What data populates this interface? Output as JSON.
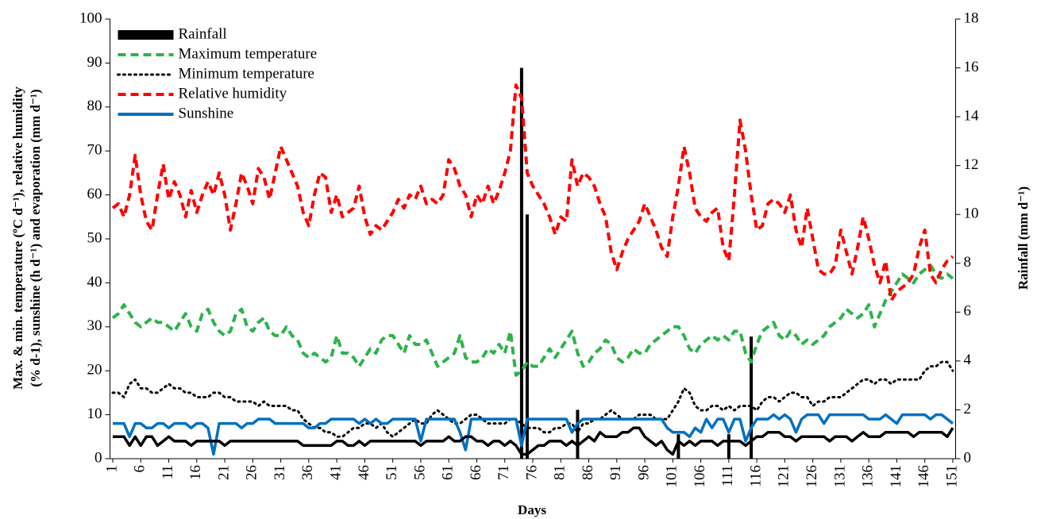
{
  "chart_data": {
    "type": "line",
    "xlabel": "Days",
    "ylabel": [
      "Max. & min. temperature (ºC d⁻¹), relative humidity",
      "(% d-1), sunshine (h d⁻¹) and evaporation (mm d⁻¹)"
    ],
    "y2label": "Rainfall (mm d⁻¹)",
    "x": [
      1,
      2,
      3,
      4,
      5,
      6,
      7,
      8,
      9,
      10,
      11,
      12,
      13,
      14,
      15,
      16,
      17,
      18,
      19,
      20,
      21,
      22,
      23,
      24,
      25,
      26,
      27,
      28,
      29,
      30,
      31,
      32,
      33,
      34,
      35,
      36,
      37,
      38,
      39,
      40,
      41,
      42,
      43,
      44,
      45,
      46,
      47,
      48,
      49,
      50,
      51,
      52,
      53,
      54,
      55,
      56,
      57,
      58,
      59,
      60,
      61,
      62,
      63,
      64,
      65,
      66,
      67,
      68,
      69,
      70,
      71,
      72,
      73,
      74,
      75,
      76,
      77,
      78,
      79,
      80,
      81,
      82,
      83,
      84,
      85,
      86,
      87,
      88,
      89,
      90,
      91,
      92,
      93,
      94,
      95,
      96,
      97,
      98,
      99,
      100,
      101,
      102,
      103,
      104,
      105,
      106,
      107,
      108,
      109,
      110,
      111,
      112,
      113,
      114,
      115,
      116,
      117,
      118,
      119,
      120,
      121,
      122,
      123,
      124,
      125,
      126,
      127,
      128,
      129,
      130,
      131,
      132,
      133,
      134,
      135,
      136,
      137,
      138,
      139,
      140,
      141,
      142,
      143,
      144,
      145,
      146,
      147,
      148,
      149,
      150,
      151
    ],
    "xlim": [
      0.5,
      151.5
    ],
    "xticks": [
      1,
      6,
      11,
      16,
      21,
      26,
      31,
      36,
      41,
      46,
      51,
      56,
      61,
      66,
      71,
      76,
      81,
      86,
      91,
      96,
      101,
      106,
      111,
      116,
      121,
      126,
      131,
      136,
      141,
      146,
      151
    ],
    "ylim": [
      0,
      100
    ],
    "yticks": [
      0,
      10,
      20,
      30,
      40,
      50,
      60,
      70,
      80,
      90,
      100
    ],
    "y2lim": [
      0,
      18
    ],
    "y2ticks": [
      0,
      2,
      4,
      6,
      8,
      10,
      12,
      14,
      16,
      18
    ],
    "legend": "upper left",
    "series": [
      {
        "name": "Rainfall",
        "style": "bar",
        "axis": "y2",
        "color": "#000000",
        "values": [
          0,
          0,
          0,
          0,
          0,
          0,
          0,
          0,
          0,
          0,
          0,
          0,
          0,
          0,
          0,
          0,
          0,
          0,
          0,
          0,
          0,
          0,
          0,
          0,
          0,
          0,
          0,
          0,
          0,
          0,
          0,
          0,
          0,
          0,
          0,
          0,
          0,
          0,
          0,
          0,
          0,
          0,
          0,
          0,
          0,
          0,
          0,
          0,
          0,
          0,
          0,
          0,
          0,
          0,
          0,
          0,
          0,
          0,
          0,
          0,
          0,
          0,
          0,
          0,
          0,
          0,
          0,
          0,
          0,
          0,
          0,
          0,
          0,
          16,
          10,
          0,
          0,
          0,
          0,
          0,
          0,
          0,
          0,
          2,
          0,
          0,
          0,
          0,
          0,
          0,
          0,
          0,
          0,
          0,
          0,
          0,
          0,
          0,
          0,
          0,
          0,
          1,
          0,
          0,
          0,
          0,
          0,
          0,
          0,
          0,
          1,
          0,
          0,
          0,
          5,
          0,
          0,
          0,
          0,
          0,
          0,
          0,
          0,
          0,
          0,
          0,
          0,
          0,
          0,
          0,
          0,
          0,
          0,
          0,
          0,
          0,
          0,
          0,
          0,
          0,
          0,
          0,
          0,
          0,
          0,
          0,
          0,
          0,
          0,
          0,
          0
        ]
      },
      {
        "name": "Maximum temperature",
        "style": "dashed",
        "color": "#2db34a",
        "values": [
          32,
          33,
          35,
          33,
          31,
          30,
          31,
          32,
          31,
          31,
          30,
          29,
          31,
          33,
          30,
          29,
          33,
          34,
          31,
          29,
          28,
          29,
          33,
          34,
          30,
          29,
          31,
          32,
          29,
          28,
          28,
          30,
          28,
          27,
          24,
          23,
          24,
          23,
          22,
          23,
          28,
          24,
          24,
          23,
          21,
          23,
          25,
          24,
          27,
          28,
          28,
          26,
          24,
          28,
          26,
          26,
          27,
          24,
          21,
          22,
          23,
          24,
          28,
          23,
          22,
          22,
          23,
          25,
          24,
          26,
          24,
          29,
          19,
          20,
          22,
          21,
          21,
          23,
          25,
          23,
          25,
          27,
          29,
          24,
          21,
          22,
          24,
          25,
          27,
          26,
          23,
          22,
          23,
          25,
          24,
          24,
          26,
          27,
          28,
          29,
          30,
          30,
          28,
          25,
          24,
          26,
          27,
          28,
          27,
          28,
          27,
          29,
          29,
          24,
          22,
          26,
          29,
          30,
          31,
          28,
          27,
          29,
          28,
          26,
          27,
          26,
          27,
          28,
          30,
          31,
          32,
          34,
          33,
          32,
          33,
          35,
          30,
          33,
          36,
          38,
          40,
          42,
          41,
          40,
          42,
          43,
          44,
          42,
          41,
          42,
          41
        ]
      },
      {
        "name": "Minimum temperature",
        "style": "dotted",
        "color": "#000000",
        "values": [
          15,
          15,
          14,
          17,
          18,
          16,
          16,
          15,
          15,
          16,
          17,
          16,
          16,
          15,
          15,
          14,
          14,
          14,
          15,
          15,
          14,
          14,
          13,
          13,
          13,
          13,
          12,
          13,
          12,
          12,
          12,
          12,
          11,
          11,
          9,
          8,
          7,
          7,
          6,
          6,
          5,
          5,
          6,
          7,
          7,
          8,
          8,
          7,
          8,
          6,
          5,
          6,
          7,
          8,
          9,
          8,
          8,
          10,
          11,
          10,
          9,
          8,
          8,
          9,
          10,
          10,
          9,
          8,
          8,
          8,
          8,
          9,
          9,
          8,
          7,
          7,
          7,
          6,
          6,
          7,
          7,
          8,
          8,
          6,
          8,
          8,
          9,
          9,
          10,
          11,
          10,
          9,
          9,
          9,
          10,
          10,
          10,
          9,
          9,
          9,
          11,
          13,
          16,
          15,
          12,
          11,
          11,
          12,
          12,
          11,
          12,
          11,
          12,
          12,
          12,
          11,
          13,
          14,
          14,
          13,
          14,
          15,
          15,
          14,
          14,
          12,
          13,
          13,
          14,
          14,
          14,
          15,
          16,
          17,
          18,
          18,
          17,
          18,
          18,
          17,
          18,
          18,
          18,
          18,
          18,
          20,
          21,
          21,
          22,
          22,
          20
        ]
      },
      {
        "name": "Relative humidity",
        "style": "dashed",
        "color": "#ff0000",
        "values": [
          57,
          58,
          55,
          60,
          69,
          60,
          54,
          52,
          60,
          67,
          59,
          63,
          60,
          55,
          61,
          56,
          60,
          63,
          60,
          65,
          60,
          52,
          58,
          65,
          62,
          58,
          66,
          64,
          59,
          65,
          71,
          68,
          65,
          62,
          56,
          53,
          60,
          65,
          64,
          56,
          60,
          55,
          56,
          57,
          62,
          55,
          51,
          53,
          52,
          54,
          56,
          59,
          57,
          60,
          59,
          62,
          58,
          59,
          58,
          60,
          68,
          66,
          62,
          60,
          55,
          60,
          58,
          62,
          58,
          61,
          65,
          70,
          85,
          82,
          65,
          62,
          60,
          58,
          55,
          51,
          55,
          54,
          68,
          62,
          65,
          64,
          62,
          58,
          55,
          47,
          43,
          47,
          50,
          52,
          54,
          58,
          55,
          52,
          48,
          46,
          55,
          62,
          71,
          65,
          57,
          55,
          54,
          56,
          57,
          48,
          45,
          60,
          77,
          70,
          60,
          52,
          53,
          58,
          59,
          58,
          56,
          60,
          52,
          48,
          57,
          50,
          43,
          42,
          42,
          44,
          52,
          47,
          42,
          48,
          55,
          50,
          44,
          40,
          45,
          36,
          38,
          39,
          40,
          42,
          48,
          52,
          42,
          40,
          43,
          45,
          46
        ]
      },
      {
        "name": "Sunshine",
        "style": "solid",
        "color": "#0070c0",
        "values": [
          8,
          8,
          8,
          5,
          8,
          8,
          7,
          7,
          8,
          8,
          7,
          8,
          8,
          8,
          7,
          8,
          8,
          7,
          1,
          8,
          8,
          8,
          8,
          7,
          8,
          8,
          9,
          9,
          9,
          8,
          8,
          8,
          8,
          8,
          8,
          7,
          7,
          8,
          8,
          9,
          9,
          9,
          9,
          9,
          8,
          9,
          8,
          9,
          8,
          8,
          9,
          9,
          9,
          9,
          9,
          4,
          9,
          9,
          9,
          9,
          9,
          9,
          6,
          2,
          9,
          9,
          9,
          9,
          9,
          9,
          9,
          9,
          9,
          3,
          9,
          9,
          9,
          9,
          9,
          9,
          9,
          9,
          6,
          8,
          9,
          9,
          9,
          9,
          9,
          9,
          9,
          9,
          9,
          9,
          9,
          9,
          9,
          9,
          9,
          7,
          6,
          6,
          6,
          5,
          7,
          6,
          9,
          7,
          9,
          9,
          6,
          9,
          9,
          4,
          7,
          9,
          9,
          9,
          10,
          9,
          10,
          9,
          6,
          9,
          10,
          10,
          10,
          8,
          10,
          10,
          10,
          10,
          10,
          10,
          10,
          9,
          9,
          9,
          10,
          9,
          8,
          10,
          10,
          10,
          10,
          10,
          9,
          10,
          10,
          9,
          8
        ]
      },
      {
        "style": "solid",
        "color": "#000000",
        "values": [
          5,
          5,
          5,
          3,
          5,
          3,
          5,
          5,
          3,
          4,
          5,
          4,
          4,
          4,
          3,
          4,
          4,
          4,
          4,
          4,
          3,
          4,
          4,
          4,
          4,
          4,
          4,
          4,
          4,
          4,
          4,
          4,
          4,
          4,
          3,
          3,
          3,
          3,
          3,
          3,
          4,
          4,
          3,
          3,
          4,
          3,
          4,
          4,
          4,
          4,
          4,
          4,
          4,
          4,
          4,
          3,
          4,
          4,
          4,
          4,
          5,
          4,
          4,
          5,
          5,
          4,
          4,
          3,
          4,
          4,
          3,
          4,
          3,
          1,
          1,
          2,
          3,
          3,
          4,
          4,
          4,
          3,
          4,
          3,
          4,
          5,
          4,
          6,
          5,
          5,
          5,
          6,
          6,
          7,
          7,
          5,
          4,
          3,
          4,
          2,
          1,
          4,
          3,
          4,
          3,
          4,
          4,
          4,
          3,
          4,
          4,
          4,
          4,
          3,
          4,
          5,
          5,
          6,
          6,
          6,
          5,
          5,
          4,
          5,
          5,
          5,
          5,
          5,
          4,
          5,
          5,
          5,
          4,
          5,
          6,
          5,
          5,
          5,
          6,
          6,
          6,
          6,
          6,
          5,
          6,
          6,
          6,
          6,
          6,
          5,
          7
        ]
      }
    ]
  }
}
